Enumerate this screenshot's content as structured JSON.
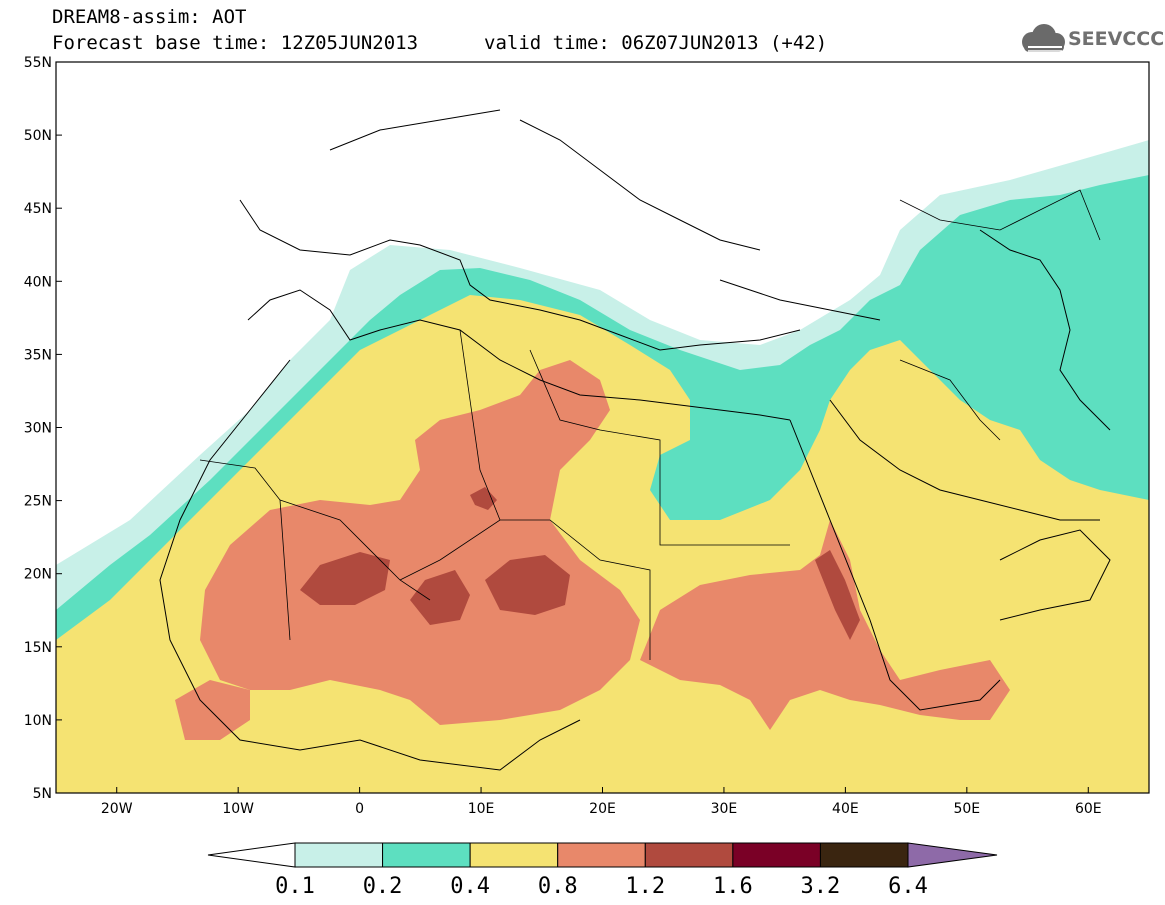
{
  "header": {
    "title": "DREAM8-assim: AOT",
    "base_time_label": "Forecast base time: 12Z05JUN2013",
    "valid_time_label": "valid time: 06Z07JUN2013 (+42)"
  },
  "logo": {
    "text": "SEEVCCC",
    "icon": "cloud-icon"
  },
  "map": {
    "lat_ticks": [
      "55N",
      "50N",
      "45N",
      "40N",
      "35N",
      "30N",
      "25N",
      "20N",
      "15N",
      "10N",
      "5N"
    ],
    "lon_ticks": [
      "20W",
      "10W",
      "0",
      "10E",
      "20E",
      "30E",
      "40E",
      "50E",
      "60E"
    ],
    "lat_range": [
      5,
      55
    ],
    "lon_range": [
      -25,
      65
    ]
  },
  "colorbar": {
    "labels": [
      "0.1",
      "0.2",
      "0.4",
      "0.8",
      "1.2",
      "1.6",
      "3.2",
      "6.4"
    ],
    "colors": [
      "#c8f0e8",
      "#5ddfc0",
      "#f5e372",
      "#e8886a",
      "#b04a3e",
      "#7a0026",
      "#3a2510",
      "#8e6aa8"
    ]
  }
}
